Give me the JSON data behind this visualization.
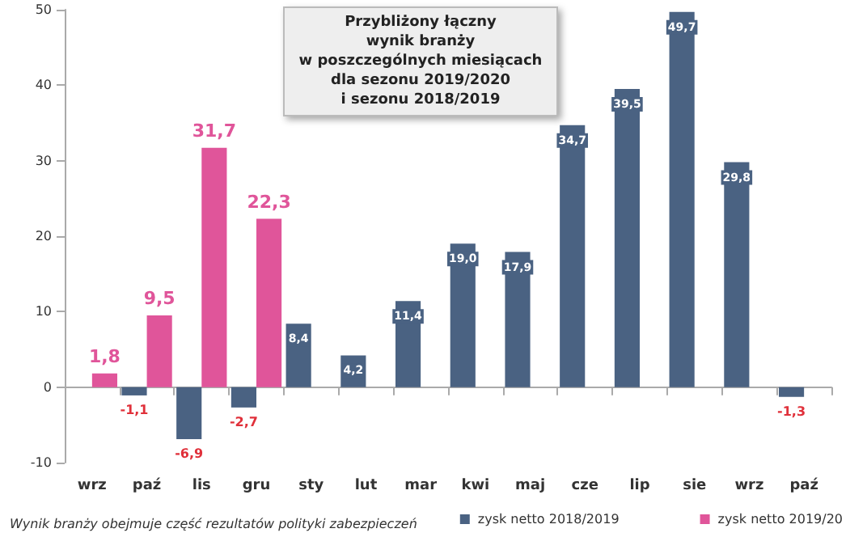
{
  "chart_data": {
    "type": "bar",
    "title": "Przybliżony łączny\nwynik branży\nw poszczególnych miesiącach\ndla sezonu 2019/2020\ni sezonu 2018/2019",
    "categories": [
      "wrz",
      "paź",
      "lis",
      "gru",
      "sty",
      "lut",
      "mar",
      "kwi",
      "maj",
      "cze",
      "lip",
      "sie",
      "wrz",
      "paź"
    ],
    "series": [
      {
        "name": "zysk netto 2018/2019",
        "color": "#4a6282",
        "values": [
          null,
          -1.1,
          -6.9,
          -2.7,
          8.4,
          4.2,
          11.4,
          19.0,
          17.9,
          34.7,
          39.5,
          49.7,
          29.8,
          -1.3
        ],
        "value_labels": [
          null,
          "-1,1",
          "-6,9",
          "-2,7",
          "8,4",
          "4,2",
          "11,4",
          "19,0",
          "17,9",
          "34,7",
          "39,5",
          "49,7",
          "29,8",
          "-1,3"
        ]
      },
      {
        "name": "zysk netto 2019/20",
        "color": "#e0559a",
        "values": [
          1.8,
          9.5,
          31.7,
          22.3,
          null,
          null,
          null,
          null,
          null,
          null,
          null,
          null,
          null,
          null
        ],
        "value_labels": [
          "1,8",
          "9,5",
          "31,7",
          "22,3",
          null,
          null,
          null,
          null,
          null,
          null,
          null,
          null,
          null,
          null
        ]
      }
    ],
    "ylim": [
      -10,
      50
    ],
    "yticks": [
      -10,
      0,
      10,
      20,
      30,
      40,
      50
    ],
    "legend": "bottom right",
    "annotations": [
      "Wynik branży obejmuje część rezultatów polityki zabezpieczeń"
    ]
  }
}
